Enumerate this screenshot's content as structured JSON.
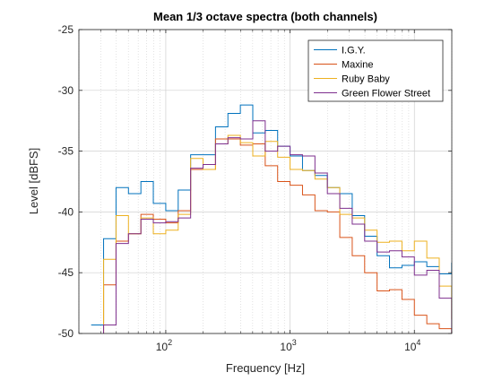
{
  "chart_data": {
    "type": "line",
    "step": true,
    "title": "Mean 1/3 octave spectra (both channels)",
    "xlabel": "Frequency [Hz]",
    "ylabel": "Level [dBFS]",
    "xscale": "log",
    "xlim": [
      20,
      20000
    ],
    "ylim": [
      -50,
      -25
    ],
    "yticks": [
      -50,
      -45,
      -40,
      -35,
      -30,
      -25
    ],
    "ytick_labels": [
      "-50",
      "-45",
      "-40",
      "-35",
      "-30",
      "-25"
    ],
    "xticks": [
      100,
      1000,
      10000
    ],
    "xtick_labels": [
      {
        "base": "10",
        "exp": "2"
      },
      {
        "base": "10",
        "exp": "3"
      },
      {
        "base": "10",
        "exp": "4"
      }
    ],
    "grid": "major and minor (dotted)",
    "legend_position": "top-right",
    "band_edges": [
      25.1,
      31.6,
      39.8,
      50.1,
      63.1,
      79.4,
      100,
      125.9,
      158.5,
      199.5,
      251.2,
      316.2,
      398.1,
      501.2,
      631,
      794.3,
      1000,
      1258.9,
      1584.9,
      1995.3,
      2511.9,
      3162.3,
      3981.1,
      5011.9,
      6309.6,
      7943.3,
      10000,
      12589.3,
      15848.9,
      19952.6
    ],
    "series": [
      {
        "name": "I.G.Y.",
        "color": "#0072BD",
        "values": [
          -49.3,
          -42.2,
          -38.0,
          -38.5,
          -37.5,
          -39.3,
          -39.9,
          -38.2,
          -35.3,
          -35.3,
          -33.0,
          -31.9,
          -31.2,
          -33.5,
          -33.3,
          -34.6,
          -35.4,
          -36.6,
          -37.0,
          -38.0,
          -38.5,
          -40.3,
          -42.0,
          -43.6,
          -44.6,
          -44.4,
          -44.1,
          -44.5,
          -45.1,
          -44.2
        ]
      },
      {
        "name": "Maxine",
        "color": "#D95319",
        "values": [
          null,
          -46.0,
          -42.4,
          -41.8,
          -40.2,
          -40.6,
          -40.9,
          -39.9,
          -36.5,
          -36.5,
          -34.0,
          -34.0,
          -34.5,
          -34.4,
          -36.2,
          -37.5,
          -37.8,
          -38.6,
          -39.9,
          -40.0,
          -42.1,
          -43.6,
          -45.0,
          -46.5,
          -46.4,
          -47.2,
          -48.5,
          -49.2,
          -49.6,
          null
        ]
      },
      {
        "name": "Ruby Baby",
        "color": "#EDB120",
        "values": [
          null,
          -43.9,
          -40.3,
          -41.8,
          -40.5,
          -41.8,
          -41.5,
          -40.2,
          -35.6,
          -36.5,
          -34.4,
          -33.7,
          -34.3,
          -35.4,
          -34.2,
          -35.5,
          -36.5,
          -36.6,
          -37.3,
          -38.0,
          -40.2,
          -40.5,
          -41.5,
          -42.5,
          -42.4,
          -43.2,
          -42.4,
          -43.8,
          -46.1,
          -48.8
        ]
      },
      {
        "name": "Green Flower Street",
        "color": "#7E2F8E",
        "values": [
          null,
          -49.3,
          -42.6,
          -41.8,
          -40.6,
          -40.9,
          -40.8,
          -40.5,
          -36.4,
          -36.1,
          -34.4,
          -33.9,
          -34.0,
          -32.5,
          -35.0,
          -34.6,
          -35.3,
          -35.4,
          -36.8,
          -38.5,
          -39.7,
          -41.0,
          -42.4,
          -43.3,
          -43.2,
          -43.7,
          -45.2,
          -44.8,
          -47.1,
          null
        ]
      }
    ]
  }
}
